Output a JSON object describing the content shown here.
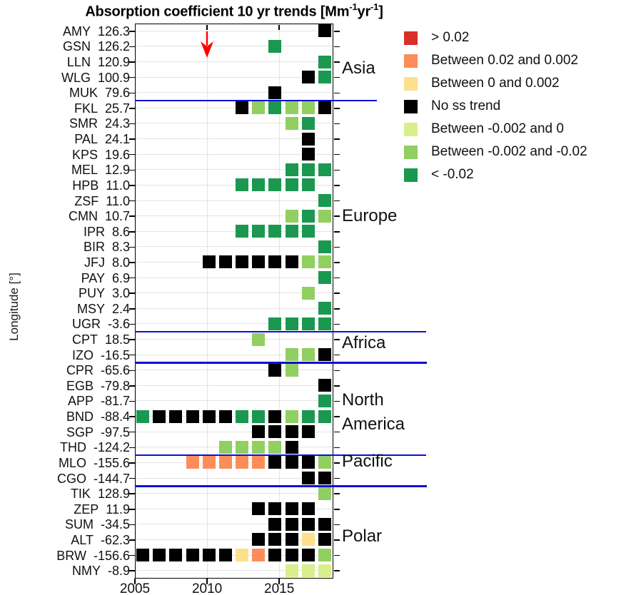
{
  "title": {
    "p1": "Absorption coefficient 10 yr trends [Mm",
    "sup1": "-1",
    "p2": "yr",
    "sup2": "-1",
    "p3": "]"
  },
  "axes": {
    "y_label": "Longitude [°]",
    "x_ticks": [
      "2005",
      "2010",
      "2015"
    ]
  },
  "legend": {
    "items": [
      {
        "key": "r",
        "label": "> 0.02"
      },
      {
        "key": "o",
        "label": "Between 0.02 and 0.002"
      },
      {
        "key": "y",
        "label": "Between 0 and 0.002"
      },
      {
        "key": "k",
        "label": "No ss trend"
      },
      {
        "key": "pg",
        "label": "Between -0.002 and 0"
      },
      {
        "key": "mg",
        "label": "Between -0.002 and -0.02"
      },
      {
        "key": "dg",
        "label": "< -0.02"
      }
    ]
  },
  "annotation_arrow": {
    "at_x_tick": "2010",
    "color": "#ff0000"
  },
  "separator_color": "#0d0dd9",
  "chart_data": {
    "type": "heatmap",
    "title": "Absorption coefficient 10 yr trends [Mm-1 yr-1]",
    "x_axis": {
      "tick_years": [
        2005,
        2010,
        2015
      ],
      "range_years": [
        2005,
        2018.75
      ],
      "slots": 12,
      "note": "12 evenly spaced yearly trend columns spanning 2005-2018"
    },
    "y_axis_label": "Longitude [°]",
    "palette": {
      "r": "#d73027",
      "o": "#fc8d59",
      "y": "#fee08b",
      "k": "#000000",
      "pg": "#d9ef8b",
      "mg": "#91cf60",
      "dg": "#1a9850"
    },
    "category_meaning": {
      "r": "> 0.02",
      "o": "Between 0.02 and 0.002",
      "y": "Between 0 and 0.002",
      "k": "No ss trend",
      "pg": "Between -0.002 and 0",
      "mg": "Between -0.002 and -0.02",
      "dg": "< -0.02"
    },
    "regions": [
      {
        "label_lines": [
          "Asia"
        ],
        "rows": [
          0,
          4
        ],
        "label_row": 2.4,
        "separator_after": {
          "x_end": 528,
          "weight": 1.5
        }
      },
      {
        "label_lines": [
          "Europe"
        ],
        "rows": [
          5,
          19
        ],
        "label_row": 12.0,
        "separator_after": {
          "x_end": 597,
          "weight": 1.5
        }
      },
      {
        "label_lines": [
          "Africa"
        ],
        "rows": [
          20,
          21
        ],
        "label_row": 20.25,
        "separator_after": {
          "x_end": 598,
          "weight": 2.5
        }
      },
      {
        "label_lines": [
          "North",
          "America"
        ],
        "rows": [
          22,
          27
        ],
        "label_row": 24.7,
        "separator_after": {
          "x_end": 597,
          "weight": 1.5
        }
      },
      {
        "label_lines": [
          "Pacific"
        ],
        "rows": [
          28,
          29
        ],
        "label_row": 27.9,
        "separator_after": {
          "x_end": 598,
          "weight": 2.5
        }
      },
      {
        "label_lines": [
          "Polar"
        ],
        "rows": [
          30,
          35
        ],
        "label_row": 32.75,
        "separator_after": null
      }
    ],
    "stations": [
      {
        "code": "AMY",
        "longitude": "126.3",
        "cells": [
          [
            11,
            "k"
          ]
        ]
      },
      {
        "code": "GSN",
        "longitude": "126.2",
        "cells": [
          [
            8,
            "dg"
          ]
        ]
      },
      {
        "code": "LLN",
        "longitude": "120.9",
        "cells": [
          [
            11,
            "dg"
          ]
        ]
      },
      {
        "code": "WLG",
        "longitude": "100.9",
        "cells": [
          [
            10,
            "k"
          ],
          [
            11,
            "dg"
          ]
        ]
      },
      {
        "code": "MUK",
        "longitude": "79.6",
        "cells": [
          [
            8,
            "k"
          ]
        ]
      },
      {
        "code": "FKL",
        "longitude": "25.7",
        "cells": [
          [
            6,
            "k"
          ],
          [
            7,
            "mg"
          ],
          [
            8,
            "dg"
          ],
          [
            9,
            "mg"
          ],
          [
            10,
            "mg"
          ],
          [
            11,
            "k"
          ]
        ]
      },
      {
        "code": "SMR",
        "longitude": "24.3",
        "cells": [
          [
            9,
            "mg"
          ],
          [
            10,
            "dg"
          ]
        ]
      },
      {
        "code": "PAL",
        "longitude": "24.1",
        "cells": [
          [
            10,
            "k"
          ]
        ]
      },
      {
        "code": "KPS",
        "longitude": "19.6",
        "cells": [
          [
            10,
            "k"
          ]
        ]
      },
      {
        "code": "MEL",
        "longitude": "12.9",
        "cells": [
          [
            9,
            "dg"
          ],
          [
            10,
            "dg"
          ],
          [
            11,
            "dg"
          ]
        ]
      },
      {
        "code": "HPB",
        "longitude": "11.0",
        "cells": [
          [
            6,
            "dg"
          ],
          [
            7,
            "dg"
          ],
          [
            8,
            "dg"
          ],
          [
            9,
            "dg"
          ],
          [
            10,
            "dg"
          ]
        ]
      },
      {
        "code": "ZSF",
        "longitude": "11.0",
        "cells": [
          [
            11,
            "dg"
          ]
        ]
      },
      {
        "code": "CMN",
        "longitude": "10.7",
        "cells": [
          [
            9,
            "mg"
          ],
          [
            10,
            "dg"
          ],
          [
            11,
            "mg"
          ]
        ]
      },
      {
        "code": "IPR",
        "longitude": "8.6",
        "cells": [
          [
            6,
            "dg"
          ],
          [
            7,
            "dg"
          ],
          [
            8,
            "dg"
          ],
          [
            9,
            "dg"
          ],
          [
            10,
            "dg"
          ]
        ]
      },
      {
        "code": "BIR",
        "longitude": "8.3",
        "cells": [
          [
            11,
            "dg"
          ]
        ]
      },
      {
        "code": "JFJ",
        "longitude": "8.0",
        "cells": [
          [
            4,
            "k"
          ],
          [
            5,
            "k"
          ],
          [
            6,
            "k"
          ],
          [
            7,
            "k"
          ],
          [
            8,
            "k"
          ],
          [
            9,
            "k"
          ],
          [
            10,
            "mg"
          ],
          [
            11,
            "mg"
          ]
        ]
      },
      {
        "code": "PAY",
        "longitude": "6.9",
        "cells": [
          [
            11,
            "dg"
          ]
        ]
      },
      {
        "code": "PUY",
        "longitude": "3.0",
        "cells": [
          [
            10,
            "mg"
          ]
        ]
      },
      {
        "code": "MSY",
        "longitude": "2.4",
        "cells": [
          [
            11,
            "dg"
          ]
        ]
      },
      {
        "code": "UGR",
        "longitude": "-3.6",
        "cells": [
          [
            8,
            "dg"
          ],
          [
            9,
            "dg"
          ],
          [
            10,
            "dg"
          ],
          [
            11,
            "dg"
          ]
        ]
      },
      {
        "code": "CPT",
        "longitude": "18.5",
        "cells": [
          [
            7,
            "mg"
          ]
        ]
      },
      {
        "code": "IZO",
        "longitude": "-16.5",
        "cells": [
          [
            9,
            "mg"
          ],
          [
            10,
            "mg"
          ],
          [
            11,
            "k"
          ]
        ]
      },
      {
        "code": "CPR",
        "longitude": "-65.6",
        "cells": [
          [
            8,
            "k"
          ],
          [
            9,
            "mg"
          ]
        ]
      },
      {
        "code": "EGB",
        "longitude": "-79.8",
        "cells": [
          [
            11,
            "k"
          ]
        ]
      },
      {
        "code": "APP",
        "longitude": "-81.7",
        "cells": [
          [
            11,
            "dg"
          ]
        ]
      },
      {
        "code": "BND",
        "longitude": "-88.4",
        "cells": [
          [
            0,
            "dg"
          ],
          [
            1,
            "k"
          ],
          [
            2,
            "k"
          ],
          [
            3,
            "k"
          ],
          [
            4,
            "k"
          ],
          [
            5,
            "k"
          ],
          [
            6,
            "dg"
          ],
          [
            7,
            "dg"
          ],
          [
            8,
            "k"
          ],
          [
            9,
            "mg"
          ],
          [
            10,
            "dg"
          ],
          [
            11,
            "dg"
          ]
        ]
      },
      {
        "code": "SGP",
        "longitude": "-97.5",
        "cells": [
          [
            7,
            "k"
          ],
          [
            8,
            "k"
          ],
          [
            9,
            "k"
          ],
          [
            10,
            "k"
          ]
        ]
      },
      {
        "code": "THD",
        "longitude": "-124.2",
        "cells": [
          [
            5,
            "mg"
          ],
          [
            6,
            "mg"
          ],
          [
            7,
            "mg"
          ],
          [
            8,
            "mg"
          ],
          [
            9,
            "k"
          ]
        ]
      },
      {
        "code": "MLO",
        "longitude": "-155.6",
        "cells": [
          [
            3,
            "o"
          ],
          [
            4,
            "o"
          ],
          [
            5,
            "o"
          ],
          [
            6,
            "o"
          ],
          [
            7,
            "o"
          ],
          [
            8,
            "k"
          ],
          [
            9,
            "k"
          ],
          [
            10,
            "k"
          ],
          [
            11,
            "mg"
          ]
        ]
      },
      {
        "code": "CGO",
        "longitude": "-144.7",
        "cells": [
          [
            10,
            "k"
          ],
          [
            11,
            "k"
          ]
        ]
      },
      {
        "code": "TIK",
        "longitude": "128.9",
        "cells": [
          [
            11,
            "mg"
          ]
        ]
      },
      {
        "code": "ZEP",
        "longitude": "11.9",
        "cells": [
          [
            7,
            "k"
          ],
          [
            8,
            "k"
          ],
          [
            9,
            "k"
          ],
          [
            10,
            "k"
          ]
        ]
      },
      {
        "code": "SUM",
        "longitude": "-34.5",
        "cells": [
          [
            8,
            "k"
          ],
          [
            9,
            "k"
          ],
          [
            10,
            "k"
          ],
          [
            11,
            "k"
          ]
        ]
      },
      {
        "code": "ALT",
        "longitude": "-62.3",
        "cells": [
          [
            7,
            "k"
          ],
          [
            8,
            "k"
          ],
          [
            9,
            "k"
          ],
          [
            10,
            "y"
          ],
          [
            11,
            "k"
          ]
        ]
      },
      {
        "code": "BRW",
        "longitude": "-156.6",
        "cells": [
          [
            0,
            "k"
          ],
          [
            1,
            "k"
          ],
          [
            2,
            "k"
          ],
          [
            3,
            "k"
          ],
          [
            4,
            "k"
          ],
          [
            5,
            "k"
          ],
          [
            6,
            "y"
          ],
          [
            7,
            "o"
          ],
          [
            8,
            "k"
          ],
          [
            9,
            "k"
          ],
          [
            10,
            "k"
          ],
          [
            11,
            "mg"
          ]
        ]
      },
      {
        "code": "NMY",
        "longitude": "-8.9",
        "cells": [
          [
            9,
            "pg"
          ],
          [
            10,
            "pg"
          ],
          [
            11,
            "pg"
          ]
        ]
      }
    ]
  }
}
